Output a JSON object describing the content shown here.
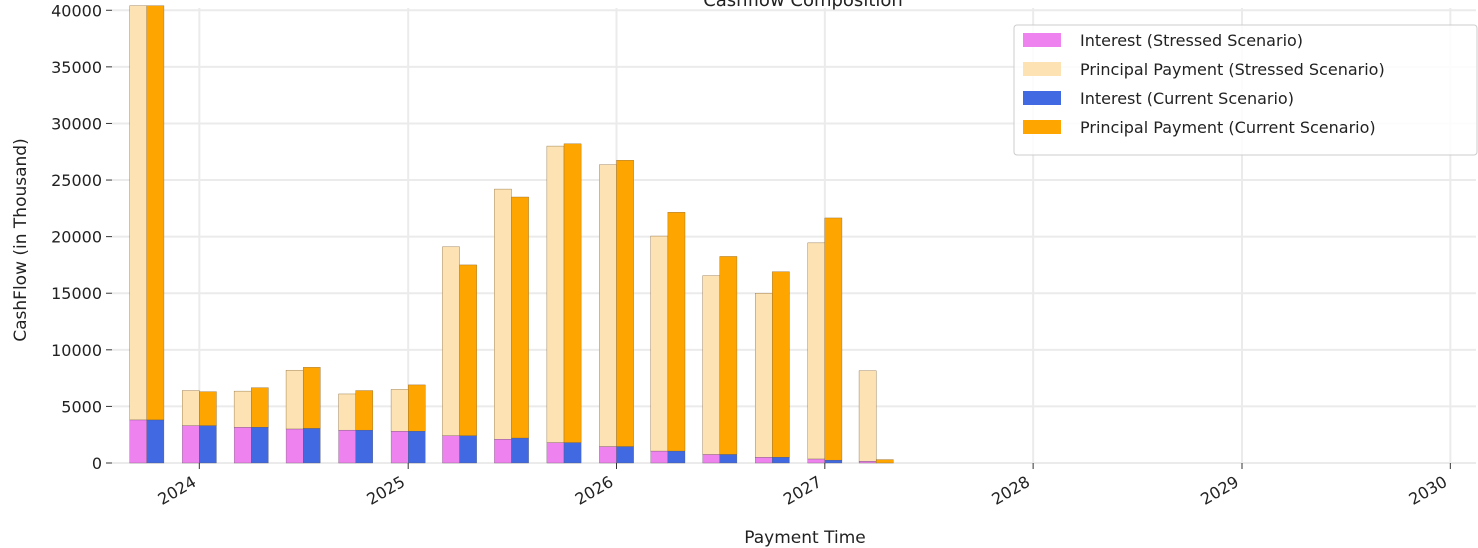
{
  "chart_data": {
    "type": "bar",
    "title": "Cashflow Composition",
    "xlabel": "Payment Time",
    "ylabel": "CashFlow (in Thousand)",
    "ylim": [
      0,
      40200
    ],
    "yticks": [
      0,
      5000,
      10000,
      15000,
      20000,
      25000,
      30000,
      35000,
      40000
    ],
    "xlim": [
      "2023-08-01",
      "2030-02-15"
    ],
    "xticks": [
      "2024",
      "2025",
      "2026",
      "2027",
      "2028",
      "2029",
      "2030"
    ],
    "grid": true,
    "legend_position": "top-right",
    "categories": [
      "2023-10",
      "2024-01",
      "2024-04",
      "2024-07",
      "2024-10",
      "2025-01",
      "2025-04",
      "2025-07",
      "2025-10",
      "2026-01",
      "2026-04",
      "2026-07",
      "2026-10",
      "2027-01",
      "2027-04"
    ],
    "series": [
      {
        "name": "Interest (Stressed Scenario)",
        "scenario": "stressed",
        "component": "interest",
        "color": "#ee82ee",
        "values": [
          3800,
          3300,
          3150,
          3000,
          2900,
          2800,
          2400,
          2100,
          1800,
          1450,
          1050,
          750,
          500,
          350,
          150
        ]
      },
      {
        "name": "Principal Payment (Stressed Scenario)",
        "scenario": "stressed",
        "component": "principal",
        "color": "#fde3b3",
        "values": [
          36600,
          3100,
          3200,
          5200,
          3200,
          3700,
          16700,
          22100,
          26200,
          24900,
          19000,
          15800,
          14500,
          19100,
          8000
        ]
      },
      {
        "name": "Interest (Current Scenario)",
        "scenario": "current",
        "component": "interest",
        "color": "#4169e1",
        "values": [
          3800,
          3300,
          3150,
          3050,
          2900,
          2800,
          2400,
          2200,
          1800,
          1450,
          1050,
          750,
          500,
          250,
          0
        ]
      },
      {
        "name": "Principal Payment (Current Scenario)",
        "scenario": "current",
        "component": "principal",
        "color": "#ffa500",
        "values": [
          36600,
          3000,
          3500,
          5400,
          3500,
          4100,
          15100,
          21300,
          26400,
          25300,
          21100,
          17500,
          16400,
          21400,
          300
        ]
      }
    ]
  }
}
